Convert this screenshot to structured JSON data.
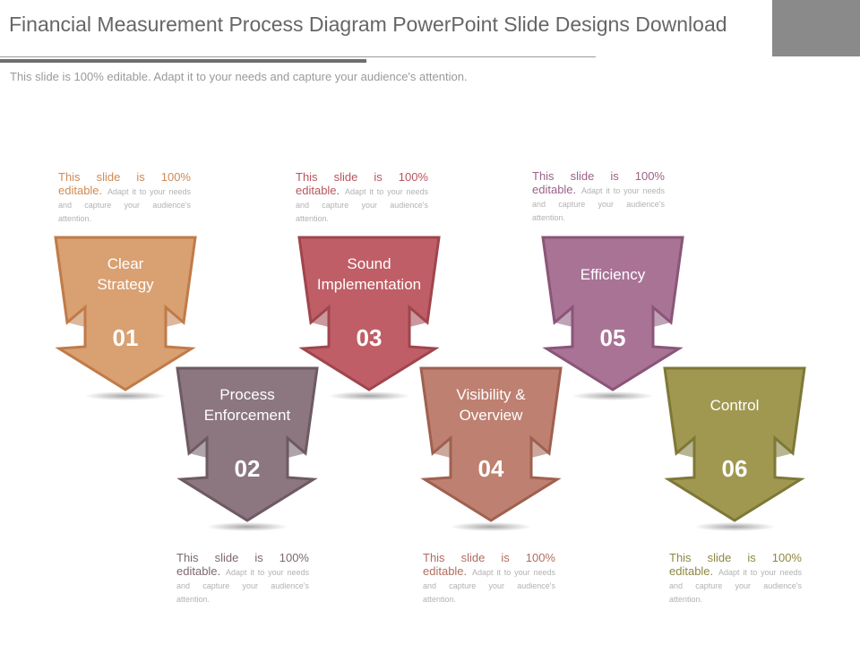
{
  "slide": {
    "title": "Financial Measurement Process Diagram PowerPoint Slide Designs Download",
    "subtitle": "This slide is 100% editable. Adapt it to your needs and capture your audience's attention."
  },
  "steps": [
    {
      "number": "01",
      "label_lines": [
        "Clear",
        "Strategy"
      ],
      "color": "#D9A072",
      "border": "#C07B48",
      "note": {
        "lead": "This slide is 100% editable.",
        "body": "Adapt it to your needs and capture your audience's attention.",
        "lead_color": "#D08A55"
      }
    },
    {
      "number": "02",
      "label_lines": [
        "Process",
        "Enforcement"
      ],
      "color": "#8C7680",
      "border": "#6E5A63",
      "note": {
        "lead": "This slide is 100% editable.",
        "body": "Adapt it to your needs and capture your audience's attention.",
        "lead_color": "#7D6870"
      }
    },
    {
      "number": "03",
      "label_lines": [
        "Sound",
        "Implementation"
      ],
      "color": "#BF5E66",
      "border": "#A0454D",
      "note": {
        "lead": "This slide is 100% editable.",
        "body": "Adapt it to your needs and capture your audience's attention.",
        "lead_color": "#B8545C"
      }
    },
    {
      "number": "04",
      "label_lines": [
        "Visibility &",
        "Overview"
      ],
      "color": "#BE8070",
      "border": "#A0604F",
      "note": {
        "lead": "This slide is 100% editable.",
        "body": "Adapt it to your needs and capture your audience's attention.",
        "lead_color": "#B06E5E"
      }
    },
    {
      "number": "05",
      "label_lines": [
        "Efficiency"
      ],
      "color": "#A97396",
      "border": "#8A5578",
      "note": {
        "lead": "This slide is 100% editable.",
        "body": "Adapt it to your needs and capture your audience's attention.",
        "lead_color": "#9A6388"
      }
    },
    {
      "number": "06",
      "label_lines": [
        "Control"
      ],
      "color": "#A09850",
      "border": "#7E7838",
      "note": {
        "lead": "This slide is 100% editable.",
        "body": "Adapt it to your needs and capture your audience's attention.",
        "lead_color": "#8E8740"
      }
    }
  ]
}
